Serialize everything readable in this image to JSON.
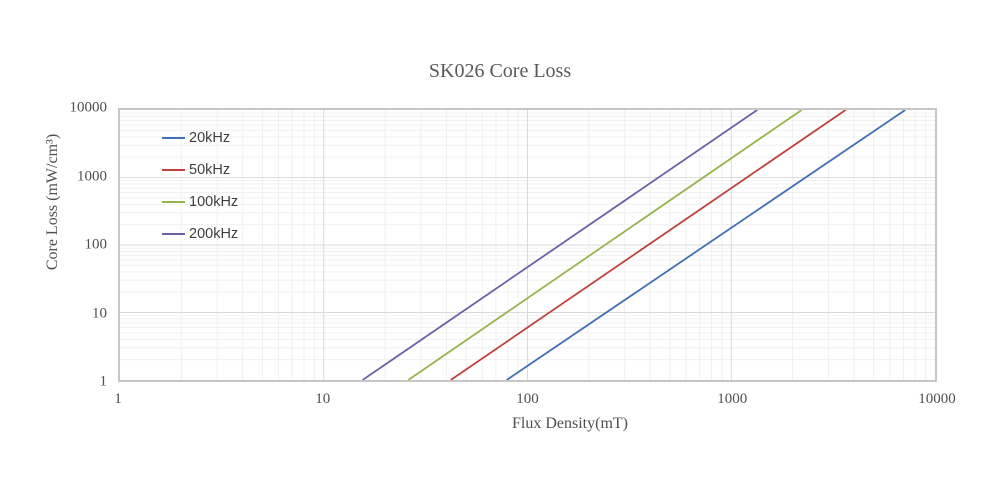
{
  "title": "SK026 Core Loss",
  "axes": {
    "x_label": "Flux Density(mT)",
    "y_label": "Core Loss (mW/cm³)",
    "x_ticks": [
      "1",
      "10",
      "100",
      "1000",
      "10000"
    ],
    "y_ticks": [
      "1",
      "10",
      "100",
      "1000",
      "10000"
    ]
  },
  "legend": {
    "position": "inside-top-left",
    "items": [
      "20kHz",
      "50kHz",
      "100kHz",
      "200kHz"
    ]
  },
  "colors": {
    "series_20kHz": "#4170B4",
    "series_50kHz": "#BE413C",
    "series_100kHz": "#96B44E",
    "series_200kHz": "#6F5FA7",
    "grid_major": "#DADADA",
    "grid_minor": "#F0F0F0",
    "plot_border": "#C6C6C6",
    "text": "#4F4F4F"
  },
  "chart_data": {
    "type": "line",
    "title": "SK026 Core Loss",
    "xlabel": "Flux Density(mT)",
    "ylabel": "Core Loss (mW/cm³)",
    "x_scale": "log",
    "y_scale": "log",
    "xlim": [
      1,
      10000
    ],
    "ylim": [
      1,
      10000
    ],
    "grid": "major and minor log gridlines on both axes",
    "legend_position": "inside top-left",
    "series": [
      {
        "name": "20kHz",
        "color": "#4170B4",
        "slope_exponent": 2.05,
        "points": [
          [
            79,
            1
          ],
          [
            7140,
            10000
          ]
        ]
      },
      {
        "name": "50kHz",
        "color": "#BE413C",
        "slope_exponent": 2.06,
        "points": [
          [
            42,
            1
          ],
          [
            3640,
            10000
          ]
        ]
      },
      {
        "name": "100kHz",
        "color": "#96B44E",
        "slope_exponent": 2.07,
        "points": [
          [
            26,
            1
          ],
          [
            2215,
            10000
          ]
        ]
      },
      {
        "name": "200kHz",
        "color": "#6F5FA7",
        "slope_exponent": 2.07,
        "points": [
          [
            15.5,
            1
          ],
          [
            1340,
            10000
          ]
        ]
      }
    ]
  }
}
